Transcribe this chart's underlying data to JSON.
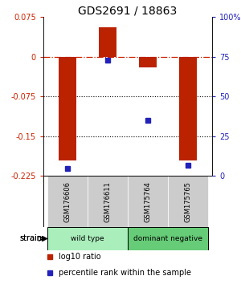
{
  "title": "GDS2691 / 18863",
  "samples": [
    "GSM176606",
    "GSM176611",
    "GSM175764",
    "GSM175765"
  ],
  "log10_ratios": [
    -0.195,
    0.055,
    -0.02,
    -0.195
  ],
  "percentile_ranks": [
    5,
    73,
    35,
    7
  ],
  "ylim_left": [
    -0.225,
    0.075
  ],
  "ylim_right": [
    0,
    100
  ],
  "yticks_left": [
    0.075,
    0,
    -0.075,
    -0.15,
    -0.225
  ],
  "yticks_right": [
    100,
    75,
    50,
    25,
    0
  ],
  "bar_color": "#bb2200",
  "dot_color": "#2222bb",
  "bar_width": 0.45,
  "groups": [
    {
      "label": "wild type",
      "samples": [
        0,
        1
      ],
      "color": "#aaeebb"
    },
    {
      "label": "dominant negative",
      "samples": [
        2,
        3
      ],
      "color": "#66cc77"
    }
  ],
  "strain_label": "strain",
  "legend_bar_label": "log10 ratio",
  "legend_dot_label": "percentile rank within the sample",
  "background_color": "#ffffff",
  "label_color_left": "#cc2200",
  "label_color_right": "#2222bb",
  "zero_line_color": "#cc2200",
  "sample_box_color": "#cccccc",
  "title_fontsize": 10
}
